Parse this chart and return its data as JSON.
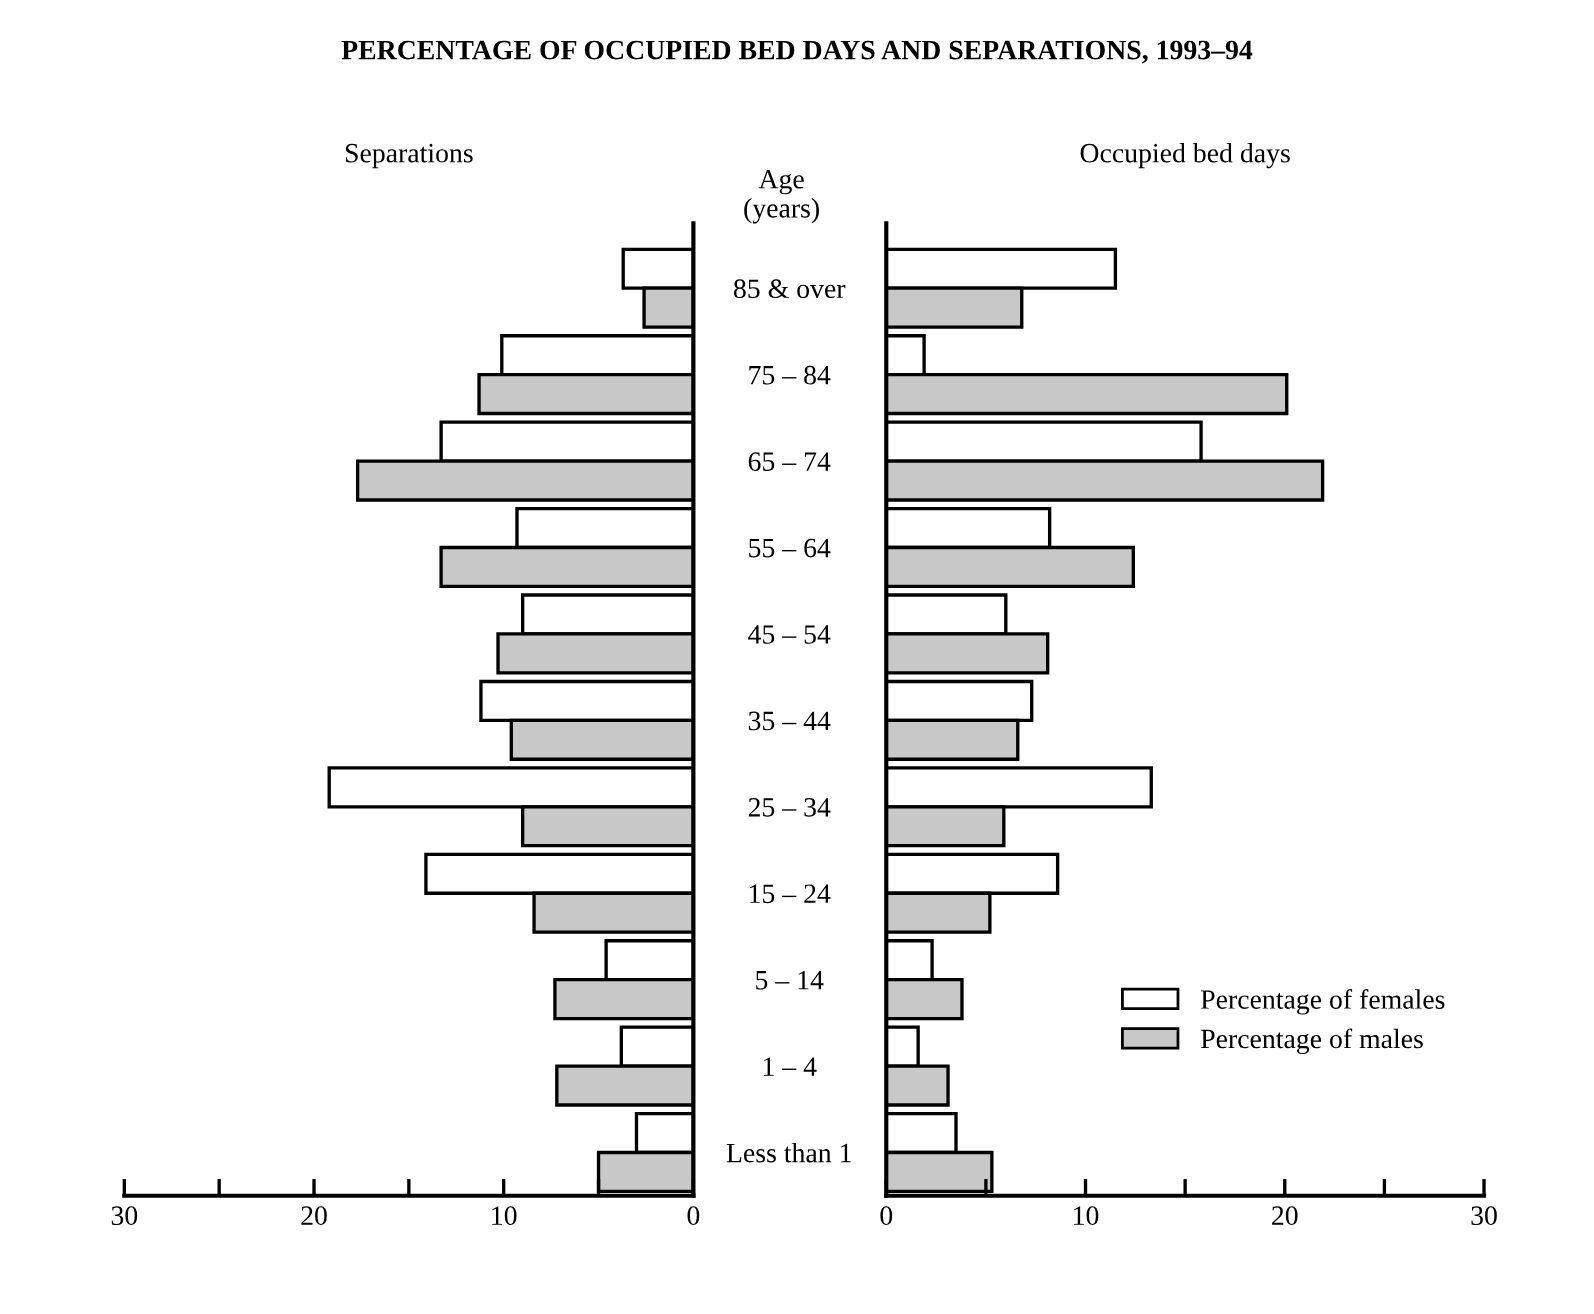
{
  "chart_data": [
    {
      "type": "bar",
      "orientation": "horizontal",
      "title": "PERCENTAGE OF OCCUPIED BED DAYS AND SEPARATIONS, 1993–94",
      "subtitle": "Separations",
      "ylabel": "Age\n(years)",
      "tick_labels": "xy",
      "categories": [
        "85 & over",
        "75 – 84",
        "65 – 74",
        "55 – 64",
        "45 – 54",
        "35 – 44",
        "25 – 34",
        "15 – 24",
        "5 – 14",
        "1 – 4",
        "Less than 1"
      ],
      "series": [
        {
          "name": "Percentage of females",
          "color": "#ffffff",
          "values": [
            3.7,
            10.1,
            13.3,
            9.3,
            9.0,
            11.2,
            19.2,
            14.1,
            4.6,
            3.8,
            3.0
          ]
        },
        {
          "name": "Percentage of males",
          "color": "#c8c8c8",
          "values": [
            2.6,
            11.3,
            17.7,
            13.3,
            10.3,
            9.6,
            9.0,
            8.4,
            7.3,
            7.2,
            5.0
          ]
        }
      ],
      "xlim": [
        30,
        0
      ],
      "xticks": [
        30,
        {
          "value": 25,
          "label": null
        },
        20,
        {
          "value": 15,
          "label": null
        },
        10,
        {
          "value": 5,
          "label": null
        },
        0
      ],
      "grid": false,
      "legend": "right"
    },
    {
      "type": "bar",
      "orientation": "horizontal",
      "title": "Occupied bed days",
      "tick_labels": "x",
      "categories": [
        null,
        null,
        null,
        null,
        null,
        null,
        null,
        null,
        null,
        null,
        null
      ],
      "series": [
        {
          "color": "#ffffff",
          "values": [
            11.5,
            1.9,
            15.8,
            8.2,
            6.0,
            7.3,
            13.3,
            8.6,
            2.3,
            1.6,
            3.5
          ]
        },
        {
          "color": "#c8c8c8",
          "values": [
            6.8,
            20.1,
            21.9,
            12.4,
            8.1,
            6.6,
            5.9,
            5.2,
            3.8,
            3.1,
            5.3
          ]
        }
      ],
      "xlim": [
        0,
        30
      ],
      "xticks": [
        0,
        {
          "value": 5,
          "label": null
        },
        10,
        {
          "value": 15,
          "label": null
        },
        20,
        {
          "value": 25,
          "label": null
        },
        30
      ],
      "grid": false
    }
  ]
}
